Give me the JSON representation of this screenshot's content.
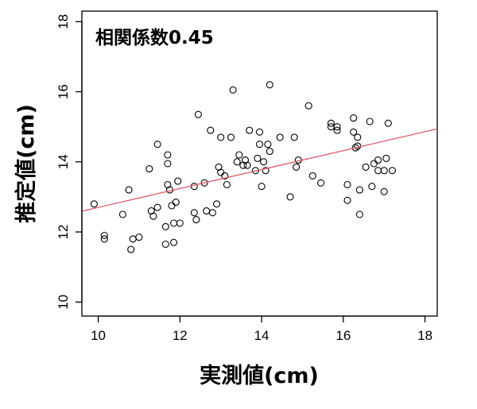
{
  "chart_data": {
    "type": "scatter",
    "title": "",
    "annotation": "相関係数0.45",
    "xlabel": "実測値(cm)",
    "ylabel": "推定値(cm)",
    "xlim": [
      9.6,
      18.3
    ],
    "ylim": [
      9.6,
      18.3
    ],
    "xticks": [
      "10",
      "12",
      "14",
      "16",
      "18"
    ],
    "yticks": [
      "10",
      "12",
      "14",
      "16",
      "18"
    ],
    "grid": false,
    "legend": "none",
    "point_color": "#000000",
    "fit_line_color": "#e05a6e",
    "fit_line": {
      "slope": 0.27,
      "intercept": 10.0
    },
    "points": [
      [
        9.9,
        12.8
      ],
      [
        10.15,
        11.9
      ],
      [
        10.15,
        11.8
      ],
      [
        10.6,
        12.5
      ],
      [
        10.75,
        13.2
      ],
      [
        10.8,
        11.5
      ],
      [
        10.85,
        11.8
      ],
      [
        11.0,
        11.85
      ],
      [
        11.25,
        13.8
      ],
      [
        11.3,
        12.6
      ],
      [
        11.35,
        12.45
      ],
      [
        11.45,
        12.7
      ],
      [
        11.45,
        14.5
      ],
      [
        11.65,
        11.65
      ],
      [
        11.65,
        12.15
      ],
      [
        11.7,
        14.2
      ],
      [
        11.7,
        13.95
      ],
      [
        11.7,
        13.35
      ],
      [
        11.75,
        13.2
      ],
      [
        11.8,
        12.75
      ],
      [
        11.85,
        11.7
      ],
      [
        11.85,
        12.25
      ],
      [
        11.9,
        12.85
      ],
      [
        11.95,
        13.45
      ],
      [
        12.0,
        12.25
      ],
      [
        12.35,
        13.3
      ],
      [
        12.35,
        12.55
      ],
      [
        12.4,
        12.35
      ],
      [
        12.45,
        15.35
      ],
      [
        12.6,
        13.4
      ],
      [
        12.65,
        12.6
      ],
      [
        12.75,
        14.9
      ],
      [
        12.8,
        12.55
      ],
      [
        12.9,
        12.8
      ],
      [
        12.95,
        13.85
      ],
      [
        13.0,
        13.7
      ],
      [
        13.0,
        14.7
      ],
      [
        13.1,
        13.6
      ],
      [
        13.15,
        13.35
      ],
      [
        13.25,
        14.7
      ],
      [
        13.3,
        16.05
      ],
      [
        13.4,
        14.0
      ],
      [
        13.45,
        14.2
      ],
      [
        13.55,
        13.9
      ],
      [
        13.6,
        14.05
      ],
      [
        13.65,
        13.9
      ],
      [
        13.7,
        14.9
      ],
      [
        13.85,
        13.75
      ],
      [
        13.9,
        14.1
      ],
      [
        13.95,
        14.5
      ],
      [
        13.95,
        14.85
      ],
      [
        14.0,
        13.3
      ],
      [
        14.05,
        14.0
      ],
      [
        14.1,
        13.75
      ],
      [
        14.15,
        14.5
      ],
      [
        14.2,
        14.3
      ],
      [
        14.2,
        16.2
      ],
      [
        14.45,
        14.7
      ],
      [
        14.7,
        13.0
      ],
      [
        14.8,
        14.7
      ],
      [
        14.85,
        13.85
      ],
      [
        14.9,
        14.05
      ],
      [
        15.15,
        15.6
      ],
      [
        15.25,
        13.6
      ],
      [
        15.45,
        13.4
      ],
      [
        15.7,
        15.0
      ],
      [
        15.7,
        15.1
      ],
      [
        15.85,
        15.0
      ],
      [
        15.85,
        14.9
      ],
      [
        16.1,
        12.9
      ],
      [
        16.1,
        13.35
      ],
      [
        16.25,
        15.25
      ],
      [
        16.25,
        14.85
      ],
      [
        16.3,
        14.4
      ],
      [
        16.35,
        14.45
      ],
      [
        16.35,
        14.7
      ],
      [
        16.4,
        13.2
      ],
      [
        16.4,
        12.5
      ],
      [
        16.55,
        13.85
      ],
      [
        16.65,
        15.15
      ],
      [
        16.7,
        13.3
      ],
      [
        16.75,
        13.95
      ],
      [
        16.85,
        13.75
      ],
      [
        16.85,
        14.05
      ],
      [
        17.0,
        13.75
      ],
      [
        17.0,
        13.15
      ],
      [
        17.05,
        14.1
      ],
      [
        17.1,
        15.1
      ],
      [
        17.2,
        13.75
      ]
    ]
  }
}
